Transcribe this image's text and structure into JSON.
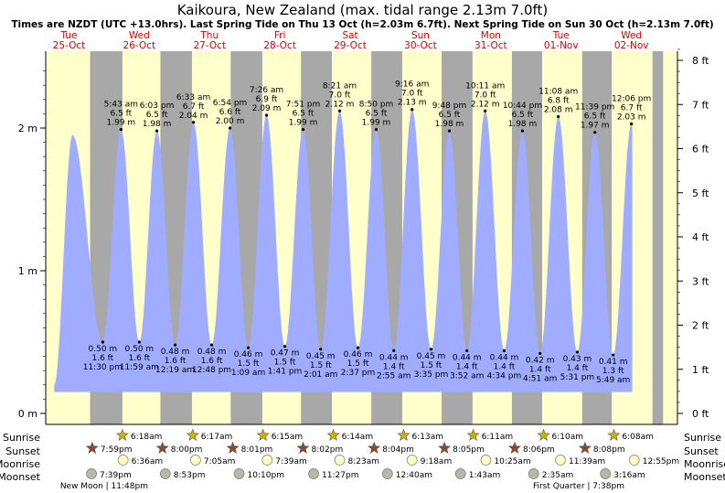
{
  "chart_data": {
    "type": "area",
    "title": "Kaikoura, New Zealand (max. tidal range 2.13m 7.0ft)",
    "subtitle": "Times are NZDT (UTC +13.0hrs). Last Spring Tide on Thu 13 Oct (h=2.03m 6.7ft). Next Spring Tide on Sun 30 Oct (h=2.13m 7.0ft)",
    "ylim": [
      0,
      2.5
    ],
    "left_ticks": [
      {
        "value": 0,
        "label": "0 m"
      },
      {
        "value": 1,
        "label": "1 m"
      },
      {
        "value": 2,
        "label": "2 m"
      }
    ],
    "right_ticks": [
      {
        "value": 0,
        "label": "0 ft"
      },
      {
        "value": 1,
        "label": "1 ft"
      },
      {
        "value": 2,
        "label": "2 ft"
      },
      {
        "value": 3,
        "label": "3 ft"
      },
      {
        "value": 4,
        "label": "4 ft"
      },
      {
        "value": 5,
        "label": "5 ft"
      },
      {
        "value": 6,
        "label": "6 ft"
      },
      {
        "value": 7,
        "label": "7 ft"
      },
      {
        "value": 8,
        "label": "8 ft"
      }
    ],
    "days": [
      {
        "dow": "Tue",
        "date": "25-Oct"
      },
      {
        "dow": "Wed",
        "date": "26-Oct"
      },
      {
        "dow": "Thu",
        "date": "27-Oct"
      },
      {
        "dow": "Fri",
        "date": "28-Oct"
      },
      {
        "dow": "Sat",
        "date": "29-Oct"
      },
      {
        "dow": "Sun",
        "date": "30-Oct"
      },
      {
        "dow": "Mon",
        "date": "31-Oct"
      },
      {
        "dow": "Tue",
        "date": "01-Nov"
      },
      {
        "dow": "Wed",
        "date": "02-Nov"
      }
    ],
    "tides": [
      {
        "type": "high",
        "t": 0.55,
        "h": 1.95,
        "time": "",
        "m": "",
        "ft": ""
      },
      {
        "type": "low",
        "t": 0.98,
        "h": 0.5,
        "time": "11:30 pm",
        "m": "0.50 m",
        "ft": "1.6 ft"
      },
      {
        "type": "high",
        "t": 1.24,
        "h": 1.99,
        "time": "5:43 am",
        "m": "1.99 m",
        "ft": "6.5 ft"
      },
      {
        "type": "low",
        "t": 1.5,
        "h": 0.5,
        "time": "11:59 am",
        "m": "0.50 m",
        "ft": "1.6 ft"
      },
      {
        "type": "high",
        "t": 1.75,
        "h": 1.98,
        "time": "6:03 pm",
        "m": "1.98 m",
        "ft": "6.5 ft"
      },
      {
        "type": "low",
        "t": 2.01,
        "h": 0.48,
        "time": "12:19 am",
        "m": "0.48 m",
        "ft": "1.6 ft"
      },
      {
        "type": "high",
        "t": 2.27,
        "h": 2.04,
        "time": "6:33 am",
        "m": "2.04 m",
        "ft": "6.7 ft"
      },
      {
        "type": "low",
        "t": 2.53,
        "h": 0.48,
        "time": "12:48 pm",
        "m": "0.48 m",
        "ft": "1.6 ft"
      },
      {
        "type": "high",
        "t": 2.79,
        "h": 2.0,
        "time": "6:54 pm",
        "m": "2.00 m",
        "ft": "6.6 ft"
      },
      {
        "type": "low",
        "t": 3.05,
        "h": 0.46,
        "time": "1:09 am",
        "m": "0.46 m",
        "ft": "1.5 ft"
      },
      {
        "type": "high",
        "t": 3.31,
        "h": 2.09,
        "time": "7:26 am",
        "m": "2.09 m",
        "ft": "6.9 ft"
      },
      {
        "type": "low",
        "t": 3.57,
        "h": 0.47,
        "time": "1:41 pm",
        "m": "0.47 m",
        "ft": "1.5 ft"
      },
      {
        "type": "high",
        "t": 3.83,
        "h": 1.99,
        "time": "7:51 pm",
        "m": "1.99 m",
        "ft": "6.5 ft"
      },
      {
        "type": "low",
        "t": 4.08,
        "h": 0.45,
        "time": "2:01 am",
        "m": "0.45 m",
        "ft": "1.5 ft"
      },
      {
        "type": "high",
        "t": 4.35,
        "h": 2.12,
        "time": "8:21 am",
        "m": "2.12 m",
        "ft": "7.0 ft"
      },
      {
        "type": "low",
        "t": 4.61,
        "h": 0.46,
        "time": "2:37 pm",
        "m": "0.46 m",
        "ft": "1.5 ft"
      },
      {
        "type": "high",
        "t": 4.87,
        "h": 1.99,
        "time": "8:50 pm",
        "m": "1.99 m",
        "ft": "6.5 ft"
      },
      {
        "type": "low",
        "t": 5.12,
        "h": 0.44,
        "time": "2:55 am",
        "m": "0.44 m",
        "ft": "1.4 ft"
      },
      {
        "type": "high",
        "t": 5.38,
        "h": 2.13,
        "time": "9:16 am",
        "m": "2.13 m",
        "ft": "7.0 ft"
      },
      {
        "type": "low",
        "t": 5.65,
        "h": 0.45,
        "time": "3:35 pm",
        "m": "0.45 m",
        "ft": "1.5 ft"
      },
      {
        "type": "high",
        "t": 5.91,
        "h": 1.98,
        "time": "9:48 pm",
        "m": "1.98 m",
        "ft": "6.5 ft"
      },
      {
        "type": "low",
        "t": 6.16,
        "h": 0.44,
        "time": "3:52 am",
        "m": "0.44 m",
        "ft": "1.4 ft"
      },
      {
        "type": "high",
        "t": 6.42,
        "h": 2.12,
        "time": "10:11 am",
        "m": "2.12 m",
        "ft": "7.0 ft"
      },
      {
        "type": "low",
        "t": 6.69,
        "h": 0.44,
        "time": "4:34 pm",
        "m": "0.44 m",
        "ft": "1.4 ft"
      },
      {
        "type": "high",
        "t": 6.95,
        "h": 1.98,
        "time": "10:44 pm",
        "m": "1.98 m",
        "ft": "6.5 ft"
      },
      {
        "type": "low",
        "t": 7.2,
        "h": 0.42,
        "time": "4:51 am",
        "m": "0.42 m",
        "ft": "1.4 ft"
      },
      {
        "type": "high",
        "t": 7.46,
        "h": 2.08,
        "time": "11:08 am",
        "m": "2.08 m",
        "ft": "6.8 ft"
      },
      {
        "type": "low",
        "t": 7.73,
        "h": 0.43,
        "time": "5:31 pm",
        "m": "0.43 m",
        "ft": "1.4 ft"
      },
      {
        "type": "high",
        "t": 7.98,
        "h": 1.97,
        "time": "11:39 pm",
        "m": "1.97 m",
        "ft": "6.5 ft"
      },
      {
        "type": "low",
        "t": 8.24,
        "h": 0.41,
        "time": "5:49 am",
        "m": "0.41 m",
        "ft": "1.3 ft"
      },
      {
        "type": "high",
        "t": 8.5,
        "h": 2.03,
        "time": "12:06 pm",
        "m": "2.03 m",
        "ft": "6.7 ft"
      }
    ],
    "night_bands": [
      [
        0.8,
        1.26
      ],
      [
        1.8,
        2.25
      ],
      [
        2.8,
        3.25
      ],
      [
        3.8,
        4.24
      ],
      [
        4.8,
        5.24
      ],
      [
        5.8,
        6.24
      ],
      [
        6.8,
        7.23
      ],
      [
        7.8,
        8.22
      ],
      [
        8.8,
        8.95
      ]
    ],
    "row_labels": {
      "sunrise": "Sunrise",
      "sunset": "Sunset",
      "moonrise": "Moonrise",
      "moonset": "Moonset"
    },
    "sunrise": [
      {
        "t": 1.26,
        "label": "6:18am"
      },
      {
        "t": 2.26,
        "label": "6:17am"
      },
      {
        "t": 3.26,
        "label": "6:15am"
      },
      {
        "t": 4.26,
        "label": "6:14am"
      },
      {
        "t": 5.26,
        "label": "6:13am"
      },
      {
        "t": 6.25,
        "label": "6:11am"
      },
      {
        "t": 7.25,
        "label": "6:10am"
      },
      {
        "t": 8.25,
        "label": "6:08am"
      }
    ],
    "sunset": [
      {
        "t": 0.83,
        "label": "7:59pm"
      },
      {
        "t": 1.83,
        "label": "8:00pm"
      },
      {
        "t": 2.83,
        "label": "8:01pm"
      },
      {
        "t": 3.83,
        "label": "8:02pm"
      },
      {
        "t": 4.84,
        "label": "8:04pm"
      },
      {
        "t": 5.84,
        "label": "8:05pm"
      },
      {
        "t": 6.84,
        "label": "8:06pm"
      },
      {
        "t": 7.84,
        "label": "8:08pm"
      }
    ],
    "moonrise": [
      {
        "t": 1.27,
        "label": "6:36am"
      },
      {
        "t": 2.3,
        "label": "7:05am"
      },
      {
        "t": 3.32,
        "label": "7:39am"
      },
      {
        "t": 4.35,
        "label": "8:23am"
      },
      {
        "t": 5.38,
        "label": "9:18am"
      },
      {
        "t": 6.43,
        "label": "10:25am"
      },
      {
        "t": 7.49,
        "label": "11:39am"
      },
      {
        "t": 8.54,
        "label": "12:55pm"
      }
    ],
    "moonset": [
      {
        "t": 0.82,
        "label": "7:39pm"
      },
      {
        "t": 1.87,
        "label": "8:53pm"
      },
      {
        "t": 2.92,
        "label": "10:10pm"
      },
      {
        "t": 3.98,
        "label": "11:27pm"
      },
      {
        "t": 5.03,
        "label": "12:40am"
      },
      {
        "t": 6.07,
        "label": "1:43am"
      },
      {
        "t": 7.11,
        "label": "2:35am"
      },
      {
        "t": 8.13,
        "label": "3:16am"
      }
    ],
    "moon_phases": [
      {
        "t": 1.0,
        "label": "New Moon | 11:48pm"
      },
      {
        "t": 7.75,
        "label": "First Quarter | 7:38pm"
      }
    ]
  },
  "colors": {
    "water": "#a0acff",
    "day": "#ffffcc",
    "night": "#a8a8a8",
    "text": "#000000",
    "accent": "#e00000",
    "sun_fill": "#c8b400",
    "sunset_fill": "#8b4a2a",
    "moonrise_fill": "#ffffcc",
    "moonset_fill": "#b8b8a8"
  }
}
